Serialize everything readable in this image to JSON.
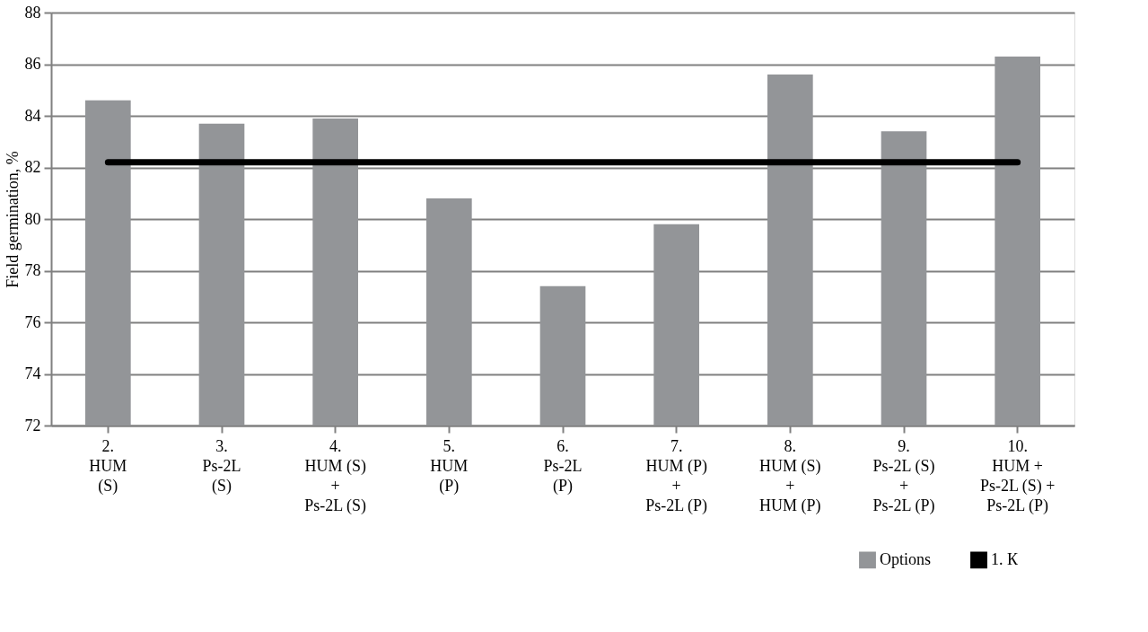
{
  "chart_data": {
    "type": "bar",
    "ylabel": "Field germination, %",
    "categories": [
      "2.\nHUM\n(S)",
      "3.\nPs-2L\n(S)",
      "4.\nHUM (S)\n+\nPs-2L (S)",
      "5.\nHUM\n(P)",
      "6.\nPs-2L\n(P)",
      "7.\nHUM (P)\n+\nPs-2L (P)",
      "8.\nHUM (S)\n+\nHUM (P)",
      "9.\nPs-2L (S)\n+\nPs-2L (P)",
      "10.\nHUM +\nPs-2L (S) +\nPs-2L (P)"
    ],
    "series": [
      {
        "name": "Options",
        "color": "#939598",
        "values": [
          84.6,
          83.7,
          83.9,
          80.8,
          77.4,
          79.8,
          85.6,
          83.4,
          86.3
        ]
      },
      {
        "name": "1. К",
        "type": "line",
        "color": "#000000",
        "values": [
          82.2,
          82.2,
          82.2,
          82.2,
          82.2,
          82.2,
          82.2,
          82.2,
          82.2
        ]
      }
    ],
    "ylim": [
      72,
      88
    ],
    "yticks": [
      72,
      74,
      76,
      78,
      80,
      82,
      84,
      86,
      88
    ],
    "grid": "y",
    "legend": "bottom right"
  }
}
